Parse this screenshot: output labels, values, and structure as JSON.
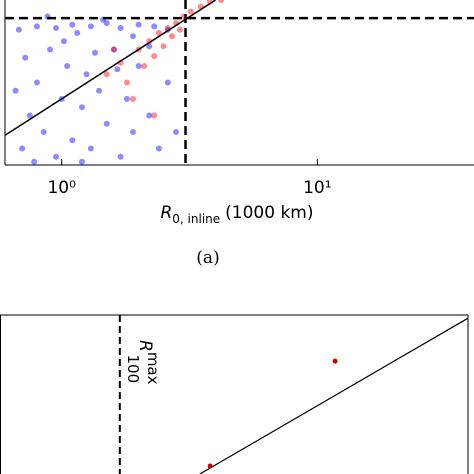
{
  "chart_data": [
    {
      "type": "scatter",
      "xscale": "log",
      "xlim": [
        0.6,
        41
      ],
      "ylim": [
        0,
        1
      ],
      "xticks": [
        {
          "value": 1,
          "label": "10⁰"
        },
        {
          "value": 10,
          "label": "10¹"
        }
      ],
      "x_label": {
        "symbol": "R",
        "subscript": "0, inline",
        "unit": "(1000 km)"
      },
      "caption": "(a)",
      "vline": 3.05,
      "hline": 0.89,
      "fit": {
        "color": "#000000",
        "x": [
          0.6,
          4.0
        ],
        "y": [
          0.18,
          1.0
        ]
      },
      "series": [
        {
          "color": "#0000ff",
          "x": [
            0.7,
            0.75,
            0.8,
            0.85,
            0.9,
            0.95,
            1.0,
            1.05,
            1.1,
            1.15,
            1.2,
            1.25,
            1.3,
            1.4,
            1.5,
            1.6,
            1.7,
            1.8,
            1.9,
            2.0,
            2.2,
            2.4,
            2.6,
            0.68,
            0.8,
            0.95,
            1.1,
            1.3,
            1.5,
            1.7,
            2.0,
            2.3,
            2.6,
            0.72,
            0.88,
            1.02,
            1.35,
            1.65,
            1.9,
            2.2,
            0.78,
            1.2,
            2.8,
            0.66,
            1.45
          ],
          "y": [
            0.1,
            0.3,
            0.5,
            0.2,
            0.7,
            0.05,
            0.4,
            0.6,
            0.15,
            0.8,
            0.35,
            0.55,
            0.1,
            0.45,
            0.25,
            0.7,
            0.05,
            0.4,
            0.2,
            0.6,
            0.3,
            0.1,
            0.5,
            0.82,
            0.84,
            0.83,
            0.85,
            0.84,
            0.86,
            0.83,
            0.85,
            0.84,
            0.82,
            0.65,
            0.9,
            0.75,
            0.68,
            0.58,
            0.78,
            0.72,
            0.02,
            0.02,
            0.2,
            0.45,
            0.88
          ]
        },
        {
          "color": "#ff0000",
          "x": [
            1.5,
            1.7,
            1.8,
            2.0,
            2.1,
            2.2,
            2.3,
            2.4,
            2.5,
            2.6,
            2.7,
            2.8,
            2.9,
            3.0,
            3.2,
            3.5,
            3.8,
            4.2,
            1.9,
            2.3,
            1.6
          ],
          "y": [
            0.55,
            0.62,
            0.5,
            0.7,
            0.6,
            0.75,
            0.66,
            0.8,
            0.72,
            0.83,
            0.78,
            0.86,
            0.82,
            0.9,
            0.93,
            0.96,
            0.99,
            1.0,
            0.4,
            0.3,
            0.7
          ]
        }
      ]
    },
    {
      "type": "line",
      "xlim": [
        0,
        1
      ],
      "ylim": [
        0,
        1
      ],
      "vline": 0.256,
      "annotation": {
        "symbol": "R",
        "superscript": "max",
        "subscript": "100"
      },
      "fit": {
        "color": "#000000",
        "x": [
          0.427,
          1.0
        ],
        "y": [
          0.0,
          0.98
        ]
      },
      "points": {
        "color": "#cc0000",
        "x": [
          0.716,
          0.449
        ],
        "y": [
          0.71,
          0.05
        ]
      }
    }
  ]
}
